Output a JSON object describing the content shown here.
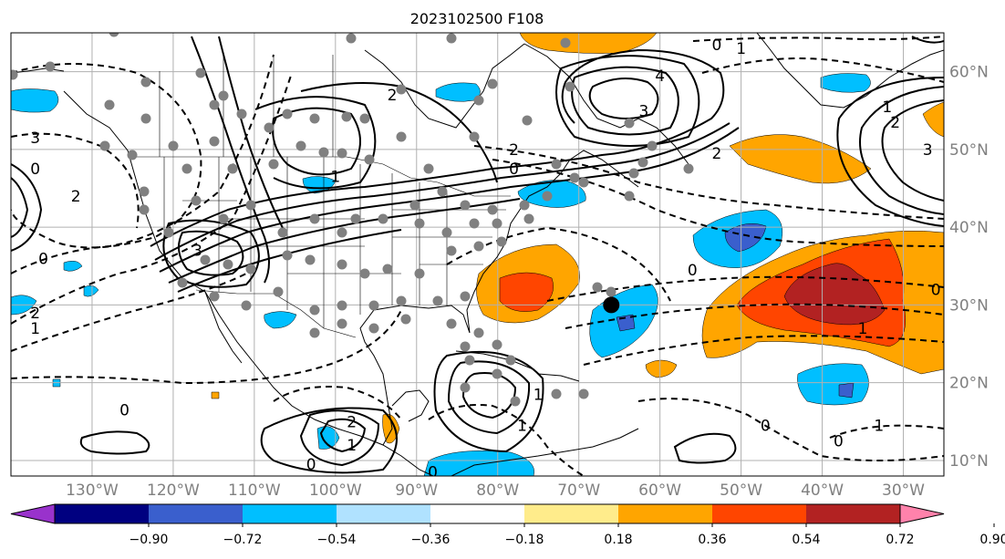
{
  "title": "2023102500 F108",
  "map": {
    "lon_range": [
      -140,
      -25
    ],
    "lat_range": [
      8,
      65
    ],
    "lon_ticks": [
      {
        "value": -130,
        "label": "130°W"
      },
      {
        "value": -120,
        "label": "120°W"
      },
      {
        "value": -110,
        "label": "110°W"
      },
      {
        "value": -100,
        "label": "100°W"
      },
      {
        "value": -90,
        "label": "90°W"
      },
      {
        "value": -80,
        "label": "80°W"
      },
      {
        "value": -70,
        "label": "70°W"
      },
      {
        "value": -60,
        "label": "60°W"
      },
      {
        "value": -50,
        "label": "50°W"
      },
      {
        "value": -40,
        "label": "40°W"
      },
      {
        "value": -30,
        "label": "30°W"
      }
    ],
    "lat_ticks": [
      {
        "value": 10,
        "label": "10°N"
      },
      {
        "value": 20,
        "label": "20°N"
      },
      {
        "value": 30,
        "label": "30°N"
      },
      {
        "value": 40,
        "label": "40°N"
      },
      {
        "value": 50,
        "label": "50°N"
      },
      {
        "value": 60,
        "label": "60°N"
      }
    ],
    "grid": true,
    "marker": {
      "lon": -66,
      "lat": 30
    }
  },
  "colorbar": {
    "ticks": [
      "−0.90",
      "−0.72",
      "−0.54",
      "−0.36",
      "−0.18",
      "0.18",
      "0.36",
      "0.54",
      "0.72",
      "0.90"
    ],
    "colors": [
      "#9932cc",
      "#000080",
      "#3a5fcd",
      "#00bfff",
      "#b0e2ff",
      "#ffffff",
      "#ffec8b",
      "#ffa500",
      "#ff4500",
      "#b22222",
      "#ff82ab"
    ]
  },
  "contour_labels": [
    {
      "text": "4",
      "lon": -60,
      "lat": 59.5
    },
    {
      "text": "2",
      "lon": -93,
      "lat": 57
    },
    {
      "text": "3",
      "lon": -62,
      "lat": 55
    },
    {
      "text": "2",
      "lon": -78,
      "lat": 50
    },
    {
      "text": "0",
      "lon": -78,
      "lat": 47.5
    },
    {
      "text": "1",
      "lon": -100,
      "lat": 46.5
    },
    {
      "text": "3",
      "lon": -117,
      "lat": 37
    },
    {
      "text": "0",
      "lon": -136,
      "lat": 36
    },
    {
      "text": "2",
      "lon": -137,
      "lat": 29
    },
    {
      "text": "1",
      "lon": -137,
      "lat": 27
    },
    {
      "text": "3",
      "lon": -137,
      "lat": 51.5
    },
    {
      "text": "0",
      "lon": -137,
      "lat": 47.5
    },
    {
      "text": "2",
      "lon": -132,
      "lat": 44
    },
    {
      "text": "0",
      "lon": -56,
      "lat": 34.5
    },
    {
      "text": "2",
      "lon": -53,
      "lat": 49.5
    },
    {
      "text": "1",
      "lon": -32,
      "lat": 55.5
    },
    {
      "text": "2",
      "lon": -31,
      "lat": 53.5
    },
    {
      "text": "3",
      "lon": -27,
      "lat": 50
    },
    {
      "text": "0",
      "lon": -26,
      "lat": 32
    },
    {
      "text": "1",
      "lon": -35,
      "lat": 27
    },
    {
      "text": "1",
      "lon": -33,
      "lat": 14.5
    },
    {
      "text": "0",
      "lon": -47,
      "lat": 14.5
    },
    {
      "text": "0",
      "lon": -38,
      "lat": 12.5
    },
    {
      "text": "0",
      "lon": -53,
      "lat": 63.5
    },
    {
      "text": "1",
      "lon": -50,
      "lat": 63
    },
    {
      "text": "2",
      "lon": -98,
      "lat": 15
    },
    {
      "text": "1",
      "lon": -98,
      "lat": 12
    },
    {
      "text": "0",
      "lon": -103,
      "lat": 9.5
    },
    {
      "text": "1",
      "lon": -77,
      "lat": 14.5
    },
    {
      "text": "1",
      "lon": -75,
      "lat": 18.5
    },
    {
      "text": "0",
      "lon": -88,
      "lat": 8.5
    },
    {
      "text": "0",
      "lon": -126,
      "lat": 16.5
    }
  ]
}
